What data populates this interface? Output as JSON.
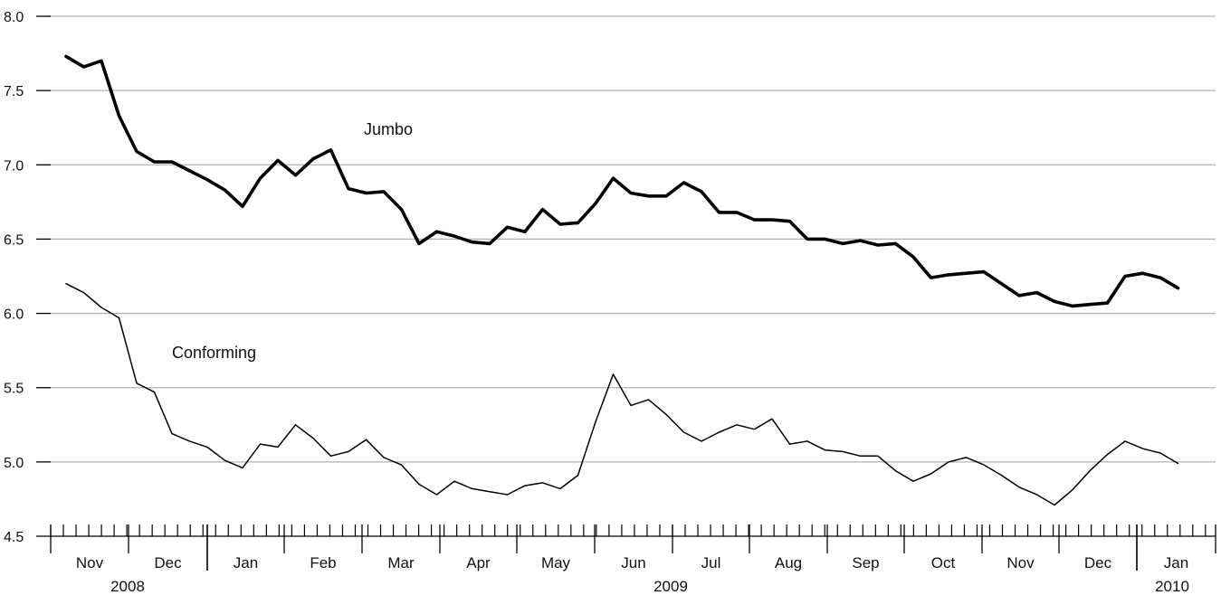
{
  "chart_data": {
    "type": "line",
    "title": "",
    "xlabel": "",
    "ylabel": "",
    "ylim": [
      4.5,
      8.0
    ],
    "yticks": [
      "8.0",
      "7.5",
      "7.0",
      "6.5",
      "6.0",
      "5.5",
      "5.0",
      "4.5"
    ],
    "grid": true,
    "months": [
      "Nov",
      "Dec",
      "Jan",
      "Feb",
      "Mar",
      "Apr",
      "May",
      "Jun",
      "Jul",
      "Aug",
      "Sep",
      "Oct",
      "Nov",
      "Dec",
      "Jan"
    ],
    "years": [
      "2008",
      "2009",
      "2010"
    ],
    "x_start": "2008-10-31",
    "x_step_weeks": 1,
    "series": [
      {
        "name": "Jumbo",
        "color": "#000000",
        "values": [
          7.73,
          7.66,
          7.7,
          7.33,
          7.09,
          7.02,
          7.02,
          6.96,
          6.9,
          6.83,
          6.72,
          6.91,
          7.03,
          6.93,
          7.04,
          7.1,
          6.84,
          6.81,
          6.82,
          6.7,
          6.47,
          6.55,
          6.52,
          6.48,
          6.47,
          6.58,
          6.55,
          6.7,
          6.6,
          6.61,
          6.74,
          6.91,
          6.81,
          6.79,
          6.79,
          6.88,
          6.82,
          6.68,
          6.68,
          6.63,
          6.63,
          6.62,
          6.5,
          6.5,
          6.47,
          6.49,
          6.46,
          6.47,
          6.38,
          6.24,
          6.26,
          6.27,
          6.28,
          6.2,
          6.12,
          6.14,
          6.08,
          6.05,
          6.06,
          6.07,
          6.25,
          6.27,
          6.24,
          6.17
        ]
      },
      {
        "name": "Conforming",
        "color": "#000000",
        "values": [
          6.2,
          6.14,
          6.04,
          5.97,
          5.53,
          5.47,
          5.19,
          5.14,
          5.1,
          5.01,
          4.96,
          5.12,
          5.1,
          5.25,
          5.16,
          5.04,
          5.07,
          5.15,
          5.03,
          4.98,
          4.85,
          4.78,
          4.87,
          4.82,
          4.8,
          4.78,
          4.84,
          4.86,
          4.82,
          4.91,
          5.27,
          5.59,
          5.38,
          5.42,
          5.32,
          5.2,
          5.14,
          5.2,
          5.25,
          5.22,
          5.29,
          5.12,
          5.14,
          5.08,
          5.07,
          5.04,
          5.04,
          4.94,
          4.87,
          4.92,
          5.0,
          5.03,
          4.98,
          4.91,
          4.83,
          4.78,
          4.71,
          4.81,
          4.94,
          5.05,
          5.14,
          5.09,
          5.06,
          4.99
        ]
      }
    ]
  }
}
